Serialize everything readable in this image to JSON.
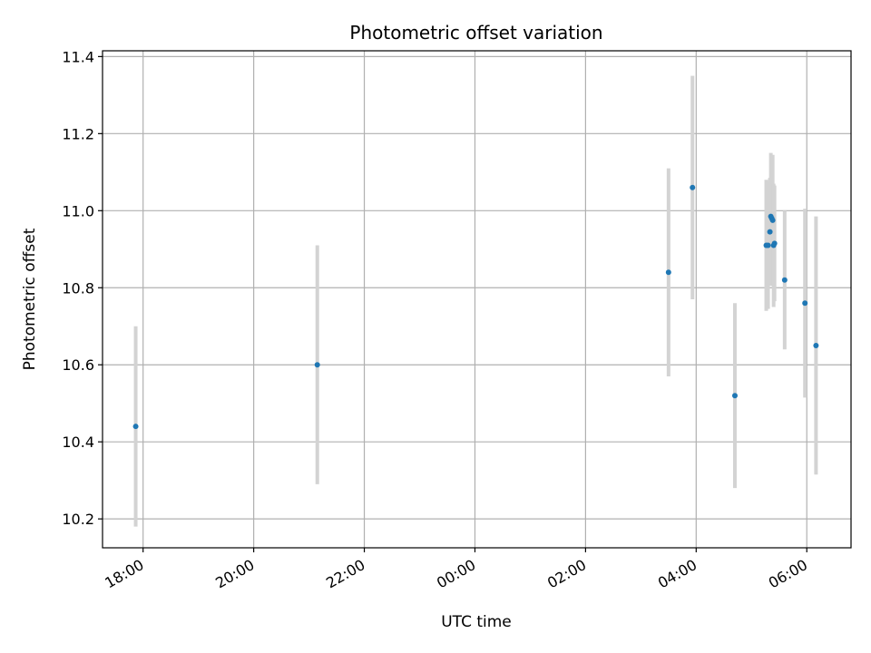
{
  "chart_data": {
    "type": "scatter",
    "title": "Photometric offset variation",
    "xlabel": "UTC time",
    "ylabel": "Photometric offset",
    "x_axis_type": "time",
    "xlim": [
      "17:16",
      "06:48"
    ],
    "ylim": [
      10.125,
      11.415
    ],
    "x_ticks": [
      "18:00",
      "20:00",
      "22:00",
      "00:00",
      "02:00",
      "04:00",
      "06:00"
    ],
    "y_ticks": [
      10.2,
      10.4,
      10.6,
      10.8,
      11.0,
      11.2,
      11.4
    ],
    "grid": true,
    "legend": "none",
    "marker_color": "#1f77b4",
    "errorbar_color": "#d3d3d3",
    "points": [
      {
        "time": "17:52",
        "value": 10.44,
        "err": 0.26
      },
      {
        "time": "21:09",
        "value": 10.6,
        "err": 0.31
      },
      {
        "time": "03:30",
        "value": 10.84,
        "err": 0.27
      },
      {
        "time": "03:56",
        "value": 11.06,
        "err": 0.29
      },
      {
        "time": "04:42",
        "value": 10.52,
        "err": 0.24
      },
      {
        "time": "05:16",
        "value": 10.91,
        "err": 0.17
      },
      {
        "time": "05:18",
        "value": 10.91,
        "err": 0.165
      },
      {
        "time": "05:20",
        "value": 10.945,
        "err": 0.14
      },
      {
        "time": "05:21",
        "value": 10.985,
        "err": 0.165
      },
      {
        "time": "05:22",
        "value": 10.98,
        "err": 0.16
      },
      {
        "time": "05:23",
        "value": 10.975,
        "err": 0.17
      },
      {
        "time": "05:24",
        "value": 10.91,
        "err": 0.16
      },
      {
        "time": "05:25",
        "value": 10.915,
        "err": 0.15
      },
      {
        "time": "05:36",
        "value": 10.82,
        "err": 0.18
      },
      {
        "time": "05:58",
        "value": 10.76,
        "err": 0.245
      },
      {
        "time": "06:10",
        "value": 10.65,
        "err": 0.335
      }
    ]
  }
}
